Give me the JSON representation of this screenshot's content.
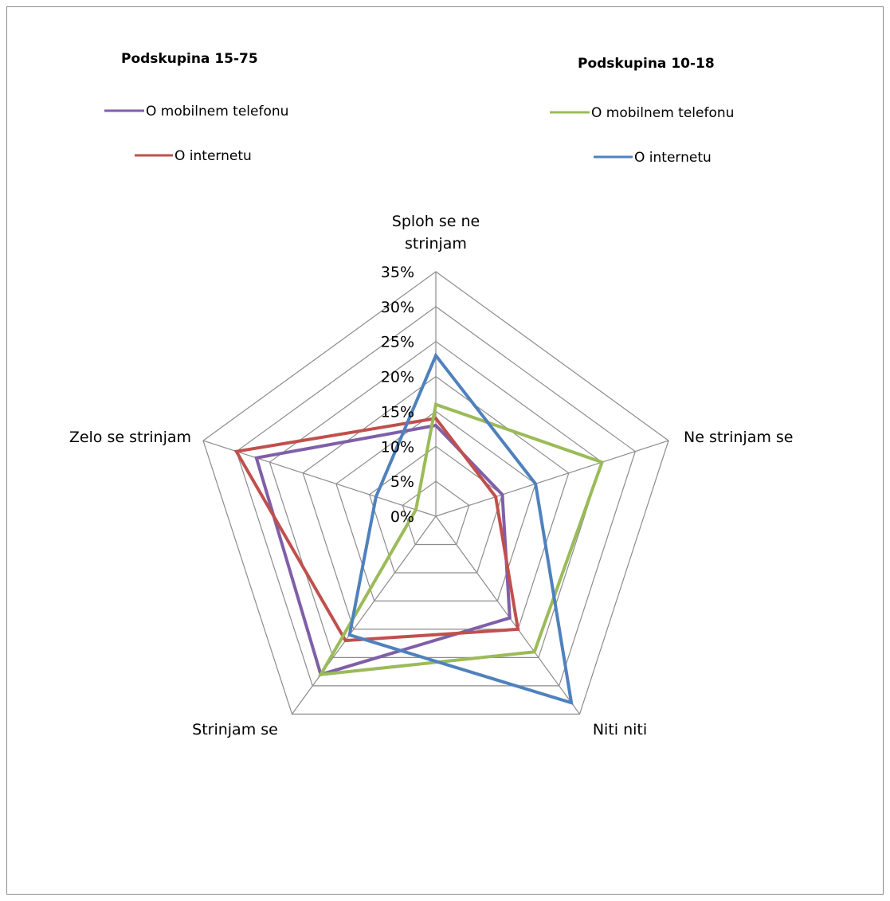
{
  "chart_data": {
    "type": "radar",
    "categories": [
      "Sploh se ne strinjam",
      "Ne strinjam se",
      "Niti niti",
      "Strinjam se",
      "Zelo se strinjam"
    ],
    "category_label_lines": [
      [
        "Sploh se ne",
        "strinjam"
      ],
      [
        "Ne strinjam se"
      ],
      [
        "Niti niti"
      ],
      [
        "Strinjam se"
      ],
      [
        "Zelo se strinjam"
      ]
    ],
    "rmin": 0,
    "rmax": 35,
    "ticks": [
      0,
      5,
      10,
      15,
      20,
      25,
      30,
      35
    ],
    "tick_labels": [
      "0%",
      "5%",
      "10%",
      "15%",
      "20%",
      "25%",
      "30%",
      "35%"
    ],
    "grid": true,
    "legend_groups": [
      {
        "title": "Podskupina 15-75",
        "position": "top-left"
      },
      {
        "title": "Podskupina 10-18",
        "position": "top-right"
      }
    ],
    "series": [
      {
        "name": "O mobilnem telefonu",
        "group": 0,
        "color": "#7f5fa8",
        "values": [
          13,
          10,
          18,
          28,
          27
        ]
      },
      {
        "name": "O internetu",
        "group": 0,
        "color": "#c0504d",
        "values": [
          14,
          9,
          20,
          22,
          30
        ]
      },
      {
        "name": "O mobilnem telefonu",
        "group": 1,
        "color": "#9bbb59",
        "values": [
          16,
          25,
          24,
          28,
          3
        ]
      },
      {
        "name": "O internetu",
        "group": 1,
        "color": "#4f81bd",
        "values": [
          23,
          15,
          33,
          21,
          9
        ]
      }
    ]
  }
}
